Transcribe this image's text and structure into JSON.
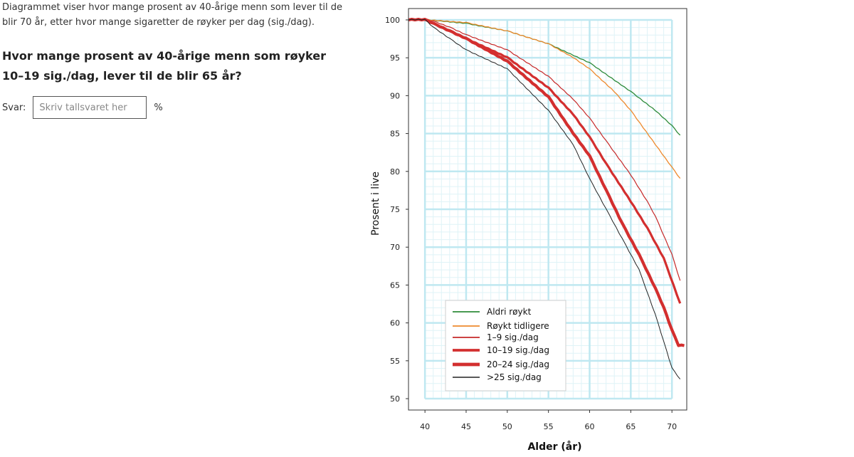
{
  "intro_text": "Diagrammet viser hvor mange prosent av 40-årige menn som lever til de blir 70 år, etter hvor mange sigaretter de røyker per dag (sig./dag).",
  "question": "Hvor mange prosent av 40-årige menn som røyker 10–19 sig./dag, lever til de blir 65 år?",
  "answer": {
    "label": "Svar:",
    "placeholder": "Skriv tallsvaret her",
    "value": "",
    "unit": "%"
  },
  "chart_data": {
    "type": "line",
    "xlabel": "Alder (år)",
    "ylabel": "Prosent i live",
    "xlim": [
      38,
      71.8
    ],
    "ylim": [
      48.5,
      101.5
    ],
    "xticks": [
      40,
      45,
      50,
      55,
      60,
      65,
      70
    ],
    "yticks": [
      50,
      55,
      60,
      65,
      70,
      75,
      80,
      85,
      90,
      95,
      100
    ],
    "grid": true,
    "legend_position": "bottom-left",
    "series": [
      {
        "name": "Aldri røykt",
        "color": "#2e8b3a",
        "width": 1.3,
        "points": [
          [
            38,
            100
          ],
          [
            40,
            100
          ],
          [
            45,
            99.5
          ],
          [
            50,
            98.5
          ],
          [
            55,
            96.8
          ],
          [
            60,
            94.3
          ],
          [
            65,
            90.5
          ],
          [
            68,
            88
          ],
          [
            70,
            86
          ],
          [
            71,
            84.7
          ]
        ]
      },
      {
        "name": "Røykt tidligere",
        "color": "#ee8a2e",
        "width": 1.3,
        "points": [
          [
            38,
            100
          ],
          [
            40,
            100
          ],
          [
            45,
            99.6
          ],
          [
            50,
            98.5
          ],
          [
            55,
            96.8
          ],
          [
            58,
            95
          ],
          [
            60,
            93.5
          ],
          [
            63,
            90.5
          ],
          [
            65,
            88
          ],
          [
            68,
            83.5
          ],
          [
            70,
            80.5
          ],
          [
            71,
            79
          ]
        ]
      },
      {
        "name": "1–9 sig./dag",
        "color": "#c62828",
        "width": 1.2,
        "points": [
          [
            38,
            100
          ],
          [
            40,
            100
          ],
          [
            41,
            99.8
          ],
          [
            43,
            99
          ],
          [
            45,
            98
          ],
          [
            50,
            96
          ],
          [
            55,
            92.5
          ],
          [
            58,
            89.5
          ],
          [
            60,
            87
          ],
          [
            62,
            84
          ],
          [
            65,
            79.5
          ],
          [
            67,
            76
          ],
          [
            68,
            74
          ],
          [
            70,
            69
          ],
          [
            71,
            65.5
          ]
        ]
      },
      {
        "name": "10–19 sig./dag",
        "color": "#d32f2f",
        "width": 3.2,
        "points": [
          [
            38,
            100
          ],
          [
            40,
            100
          ],
          [
            41,
            99.5
          ],
          [
            43,
            98.5
          ],
          [
            45,
            97.5
          ],
          [
            50,
            95
          ],
          [
            55,
            91
          ],
          [
            58,
            87.5
          ],
          [
            60,
            84.5
          ],
          [
            62,
            81
          ],
          [
            65,
            76
          ],
          [
            67,
            72.5
          ],
          [
            69,
            68.5
          ],
          [
            71,
            62.5
          ]
        ]
      },
      {
        "name": "20–24 sig./dag",
        "color": "#d32f2f",
        "width": 4.2,
        "points": [
          [
            38,
            100
          ],
          [
            40,
            100
          ],
          [
            41,
            99.5
          ],
          [
            43,
            98.5
          ],
          [
            45,
            97.5
          ],
          [
            50,
            94.5
          ],
          [
            55,
            89.8
          ],
          [
            58,
            85
          ],
          [
            60,
            82
          ],
          [
            62,
            77.5
          ],
          [
            64,
            73
          ],
          [
            66,
            69
          ],
          [
            68,
            64.5
          ],
          [
            69,
            62
          ],
          [
            70,
            59
          ],
          [
            70.8,
            57
          ],
          [
            71.5,
            57
          ]
        ]
      },
      {
        "name": ">25 sig./dag",
        "color": "#222222",
        "width": 1,
        "points": [
          [
            38,
            100
          ],
          [
            40,
            100
          ],
          [
            41,
            99
          ],
          [
            43,
            97.5
          ],
          [
            45,
            96
          ],
          [
            50,
            93.5
          ],
          [
            55,
            88
          ],
          [
            58,
            83.5
          ],
          [
            60,
            79
          ],
          [
            62,
            75
          ],
          [
            64,
            71
          ],
          [
            66,
            67
          ],
          [
            68,
            61
          ],
          [
            69,
            57.5
          ],
          [
            70,
            54
          ],
          [
            71,
            52.5
          ]
        ]
      }
    ]
  }
}
